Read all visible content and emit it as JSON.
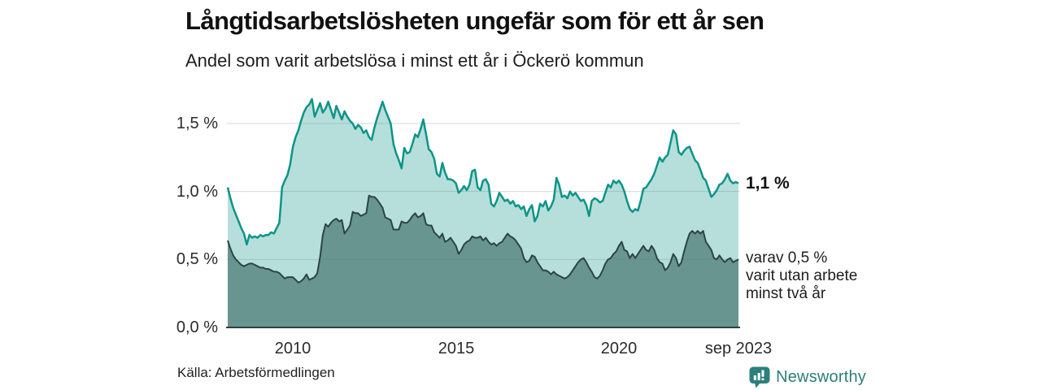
{
  "header": {
    "title": "Långtidsarbetslösheten ungefär som för ett år sen",
    "subtitle": "Andel som varit arbetslösa i minst ett år i Öckerö kommun"
  },
  "chart_data": {
    "type": "area",
    "title": "Långtidsarbetslösheten ungefär som för ett år sen",
    "subtitle": "Andel som varit arbetslösa i minst ett år i Öckerö kommun",
    "unit": "%",
    "frequency": "monthly",
    "x_start": "2008-01",
    "x_end": "2023-09",
    "ylim": [
      0,
      1.72
    ],
    "grid": "horizontal",
    "y_ticks": [
      {
        "label": "0,0 %",
        "value": 0.0
      },
      {
        "label": "0,5 %",
        "value": 0.5
      },
      {
        "label": "1,0 %",
        "value": 1.0
      },
      {
        "label": "1,5 %",
        "value": 1.5
      }
    ],
    "x_ticks": [
      {
        "label": "2010",
        "month_index": 24
      },
      {
        "label": "2015",
        "month_index": 84
      },
      {
        "label": "2020",
        "month_index": 144
      },
      {
        "label": "sep 2023",
        "month_index": 188
      }
    ],
    "series": [
      {
        "name": "Arbetslösa minst ett år",
        "end_label": "1,1 %",
        "stroke": "#0d9488",
        "fill": "rgba(13,148,136,0.30)",
        "stroke_width": 2.5,
        "values": [
          1.03,
          0.95,
          0.88,
          0.83,
          0.78,
          0.73,
          0.69,
          0.61,
          0.68,
          0.66,
          0.67,
          0.66,
          0.68,
          0.67,
          0.68,
          0.68,
          0.7,
          0.69,
          0.73,
          0.77,
          1.03,
          1.08,
          1.12,
          1.2,
          1.33,
          1.4,
          1.45,
          1.52,
          1.58,
          1.62,
          1.64,
          1.68,
          1.55,
          1.6,
          1.65,
          1.58,
          1.61,
          1.66,
          1.6,
          1.54,
          1.63,
          1.58,
          1.53,
          1.59,
          1.55,
          1.52,
          1.5,
          1.46,
          1.49,
          1.47,
          1.43,
          1.45,
          1.4,
          1.38,
          1.47,
          1.54,
          1.6,
          1.66,
          1.6,
          1.55,
          1.5,
          1.35,
          1.28,
          1.23,
          1.17,
          1.32,
          1.28,
          1.29,
          1.35,
          1.42,
          1.4,
          1.46,
          1.53,
          1.42,
          1.31,
          1.29,
          1.24,
          1.13,
          1.11,
          1.21,
          1.14,
          1.09,
          1.09,
          1.08,
          1.06,
          0.99,
          1.01,
          1.04,
          1.01,
          1.05,
          1.15,
          1.16,
          1.03,
          1.01,
          1.08,
          1.09,
          1.05,
          0.91,
          0.89,
          0.93,
          0.99,
          0.96,
          0.93,
          0.94,
          0.91,
          0.93,
          0.89,
          0.9,
          0.87,
          0.89,
          0.82,
          0.87,
          0.9,
          0.78,
          0.82,
          0.91,
          0.89,
          0.93,
          0.86,
          0.89,
          0.94,
          1.1,
          1.05,
          0.96,
          0.97,
          0.95,
          1.0,
          0.97,
          0.99,
          0.96,
          0.93,
          0.94,
          0.9,
          0.82,
          0.93,
          0.95,
          0.94,
          0.92,
          0.93,
          0.99,
          1.05,
          1.03,
          1.08,
          1.06,
          1.08,
          1.05,
          1.0,
          0.93,
          0.87,
          0.85,
          0.87,
          0.86,
          0.93,
          1.02,
          1.03,
          1.06,
          1.09,
          1.13,
          1.19,
          1.25,
          1.22,
          1.25,
          1.27,
          1.36,
          1.45,
          1.42,
          1.29,
          1.27,
          1.3,
          1.32,
          1.33,
          1.28,
          1.23,
          1.21,
          1.16,
          1.1,
          1.08,
          1.02,
          0.96,
          0.98,
          1.01,
          1.05,
          1.06,
          1.09,
          1.13,
          1.08,
          1.06,
          1.07,
          1.06
        ]
      },
      {
        "name": "Varav utan arbete minst två år",
        "end_label": "varav 0,5 % varit utan arbete minst två år",
        "stroke": "#2e4347",
        "fill": "rgba(85,130,124,0.80)",
        "stroke_width": 2,
        "values": [
          0.64,
          0.58,
          0.53,
          0.5,
          0.48,
          0.46,
          0.45,
          0.46,
          0.47,
          0.47,
          0.46,
          0.45,
          0.44,
          0.44,
          0.43,
          0.43,
          0.42,
          0.41,
          0.41,
          0.4,
          0.38,
          0.36,
          0.37,
          0.37,
          0.37,
          0.35,
          0.33,
          0.34,
          0.36,
          0.39,
          0.35,
          0.36,
          0.37,
          0.4,
          0.52,
          0.68,
          0.76,
          0.74,
          0.77,
          0.79,
          0.8,
          0.78,
          0.79,
          0.69,
          0.72,
          0.75,
          0.85,
          0.84,
          0.84,
          0.82,
          0.83,
          0.84,
          0.97,
          0.96,
          0.96,
          0.94,
          0.91,
          0.88,
          0.81,
          0.8,
          0.79,
          0.72,
          0.72,
          0.72,
          0.78,
          0.77,
          0.77,
          0.79,
          0.82,
          0.84,
          0.81,
          0.82,
          0.84,
          0.76,
          0.75,
          0.75,
          0.7,
          0.68,
          0.66,
          0.69,
          0.63,
          0.64,
          0.66,
          0.63,
          0.6,
          0.54,
          0.57,
          0.61,
          0.63,
          0.64,
          0.67,
          0.66,
          0.66,
          0.67,
          0.64,
          0.66,
          0.63,
          0.61,
          0.62,
          0.6,
          0.62,
          0.63,
          0.66,
          0.69,
          0.67,
          0.66,
          0.64,
          0.61,
          0.58,
          0.51,
          0.48,
          0.49,
          0.53,
          0.52,
          0.48,
          0.45,
          0.42,
          0.42,
          0.41,
          0.39,
          0.41,
          0.39,
          0.38,
          0.37,
          0.36,
          0.37,
          0.39,
          0.42,
          0.45,
          0.48,
          0.5,
          0.51,
          0.48,
          0.44,
          0.41,
          0.37,
          0.36,
          0.38,
          0.42,
          0.47,
          0.5,
          0.51,
          0.54,
          0.56,
          0.6,
          0.63,
          0.57,
          0.56,
          0.51,
          0.54,
          0.51,
          0.54,
          0.57,
          0.6,
          0.57,
          0.56,
          0.6,
          0.57,
          0.51,
          0.48,
          0.47,
          0.42,
          0.44,
          0.48,
          0.54,
          0.51,
          0.45,
          0.48,
          0.56,
          0.63,
          0.69,
          0.71,
          0.69,
          0.71,
          0.69,
          0.71,
          0.63,
          0.6,
          0.57,
          0.51,
          0.5,
          0.53,
          0.5,
          0.48,
          0.5,
          0.51,
          0.48,
          0.49,
          0.5
        ]
      }
    ]
  },
  "annotations": {
    "series1_end": "1,1 %",
    "series2_end_line1": "varav 0,5 %",
    "series2_end_line2": "varit utan arbete",
    "series2_end_line3": "minst två år"
  },
  "footer": {
    "source": "Källa: Arbetsförmedlingen",
    "brand": "Newsworthy"
  },
  "colors": {
    "accent_teal": "#0d9488",
    "light_area_fill": "rgba(13,148,136,0.30)",
    "dark_area_stroke": "#2e4347",
    "dark_area_fill": "rgba(85,130,124,0.80)",
    "gridline": "#d8d8d8",
    "baseline": "#343e40",
    "brand_teal": "#2c7f7a",
    "text": "#1a1a1a"
  }
}
